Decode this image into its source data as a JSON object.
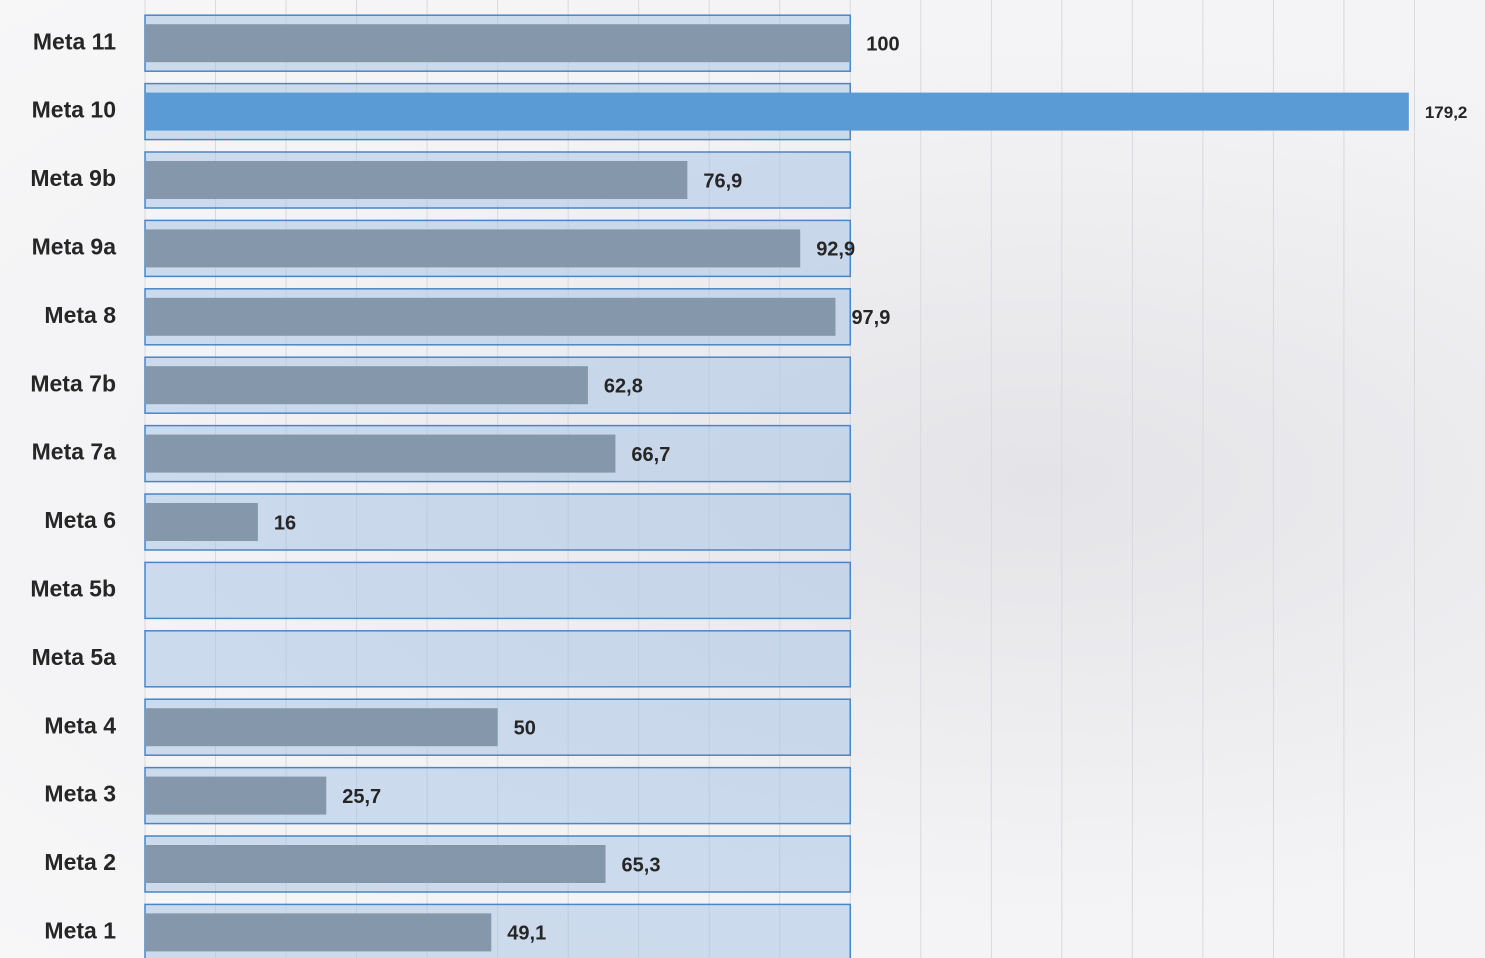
{
  "chart_data": {
    "type": "hbar",
    "categories": [
      "Meta 11",
      "Meta 10",
      "Meta 9b",
      "Meta 9a",
      "Meta 8",
      "Meta 7b",
      "Meta 7a",
      "Meta 6",
      "Meta 5b",
      "Meta 5a",
      "Meta 4",
      "Meta 3",
      "Meta 2",
      "Meta 1"
    ],
    "series": [
      {
        "color": "#a9c4e4",
        "values": [
          100,
          100,
          100,
          100,
          100,
          100,
          100,
          100,
          100,
          100,
          100,
          100,
          100,
          100
        ]
      },
      {
        "colors": [
          "#8497ab",
          "#5b9bd5",
          "#8497ab",
          "#8497ab",
          "#8497ab",
          "#8497ab",
          "#8497ab",
          "#8497ab",
          "#8497ab",
          "#8497ab",
          "#8497ab",
          "#8497ab",
          "#8497ab",
          "#8497ab"
        ],
        "values": [
          100,
          179.2,
          76.9,
          92.9,
          97.9,
          62.8,
          66.7,
          16,
          null,
          null,
          50,
          25.7,
          65.3,
          49.1
        ],
        "value_labels": [
          "100",
          "179,2",
          "76,9",
          "92,9",
          "97,9",
          "62,8",
          "66,7",
          "16",
          null,
          null,
          "50",
          "25,7",
          "65,3",
          "49,1"
        ]
      }
    ],
    "xlim": [
      0,
      190
    ],
    "xticks": [
      0,
      10,
      20,
      30,
      40,
      50,
      60,
      70,
      80,
      90,
      100,
      110,
      120,
      130,
      140,
      150,
      160,
      170,
      180
    ],
    "grid": true
  }
}
